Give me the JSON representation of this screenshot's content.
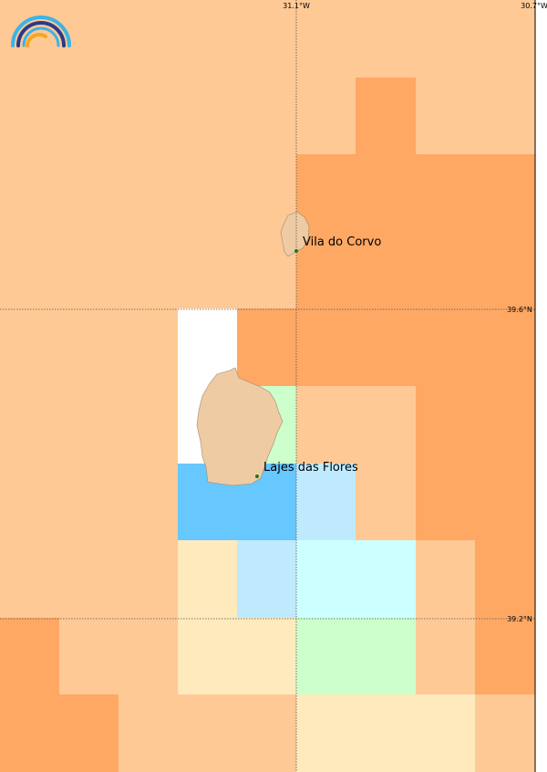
{
  "map": {
    "lon_labels": [
      "31.1°W",
      "30.7°W"
    ],
    "lat_labels": [
      "39.6°N",
      "39.2°N"
    ],
    "places": [
      "Vila do Corvo",
      "Lajes das Flores"
    ]
  }
}
